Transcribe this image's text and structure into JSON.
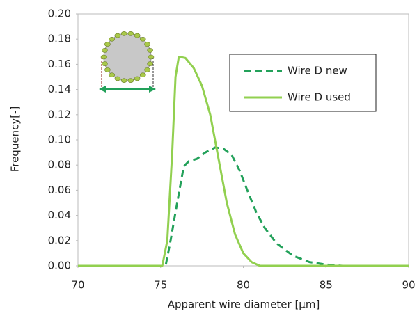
{
  "chart_data": {
    "type": "line",
    "xlabel": "Apparent wire diameter [μm]",
    "ylabel": "Frequency[-]",
    "xlim": [
      70,
      90
    ],
    "xticks": [
      70,
      75,
      80,
      85,
      90
    ],
    "ylim": [
      0,
      0.2
    ],
    "yticks": [
      {
        "value": 0,
        "label": "0.00"
      },
      {
        "value": 0.02,
        "label": "0.02"
      },
      {
        "value": 0.04,
        "label": "0.04"
      },
      {
        "value": 0.06,
        "label": "0.06"
      },
      {
        "value": 0.08,
        "label": "0.08"
      },
      {
        "value": 0.1,
        "label": "0.10"
      },
      {
        "value": 0.12,
        "label": "0.12"
      },
      {
        "value": 0.14,
        "label": "0.14"
      },
      {
        "value": 0.16,
        "label": "0.16"
      },
      {
        "value": 0.18,
        "label": "0.18"
      },
      {
        "value": 0.2,
        "label": "0.20"
      }
    ],
    "series": [
      {
        "name": "Wire D new",
        "color": "#23a15a",
        "dashed": true,
        "x": [
          70,
          75.3,
          75.6,
          76.0,
          76.4,
          76.7,
          77.2,
          77.7,
          78.3,
          78.8,
          79.3,
          79.8,
          80.3,
          80.8,
          81.3,
          82.0,
          83.0,
          84.0,
          85.0,
          86.0,
          90
        ],
        "values": [
          0,
          0,
          0.02,
          0.05,
          0.079,
          0.083,
          0.085,
          0.09,
          0.094,
          0.093,
          0.088,
          0.075,
          0.058,
          0.042,
          0.03,
          0.018,
          0.008,
          0.003,
          0.001,
          0,
          0
        ]
      },
      {
        "name": "Wire D used",
        "color": "#92d050",
        "dashed": false,
        "x": [
          70,
          75.1,
          75.4,
          75.7,
          75.9,
          76.1,
          76.5,
          77.0,
          77.5,
          78.0,
          78.5,
          79.0,
          79.5,
          80.0,
          80.5,
          81.0,
          90
        ],
        "values": [
          0,
          0,
          0.02,
          0.09,
          0.15,
          0.166,
          0.165,
          0.157,
          0.143,
          0.12,
          0.085,
          0.05,
          0.025,
          0.01,
          0.003,
          0,
          0
        ]
      }
    ]
  }
}
